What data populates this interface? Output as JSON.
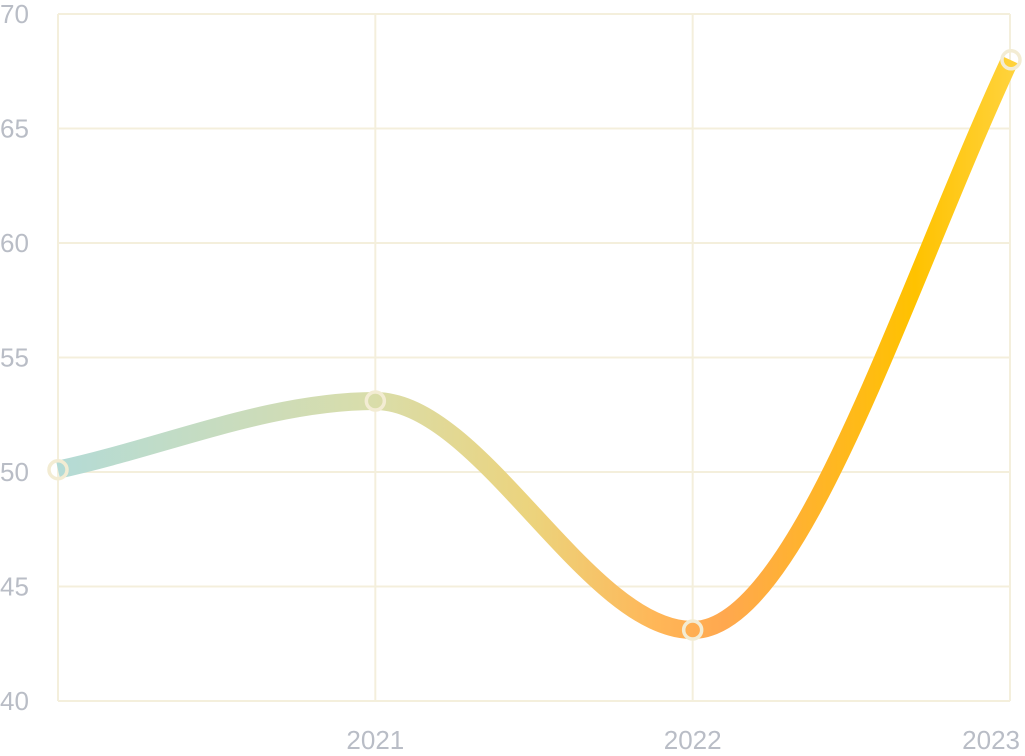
{
  "chart_data": {
    "type": "line",
    "title": "",
    "xlabel": "",
    "ylabel": "",
    "categories": [
      "",
      "2021",
      "2022",
      "2023"
    ],
    "series": [
      {
        "values": [
          50.1,
          53.1,
          43.1,
          68.0
        ]
      }
    ],
    "ylim": [
      40,
      70
    ],
    "yticks": [
      40,
      45,
      50,
      55,
      60,
      65,
      70
    ],
    "grid": true,
    "legend": "none",
    "curve": "smooth",
    "markers": "hollow-circle",
    "colors": {
      "grid": "#f4efdc",
      "tick_label": "#b9bdc6",
      "marker": "#f3ecd3",
      "line_gradient": [
        "#b4dbd6",
        "#d9ddaa",
        "#ecd37c",
        "#ffb657",
        "#ffa84f",
        "#ffc200",
        "#ffd23a"
      ]
    }
  }
}
